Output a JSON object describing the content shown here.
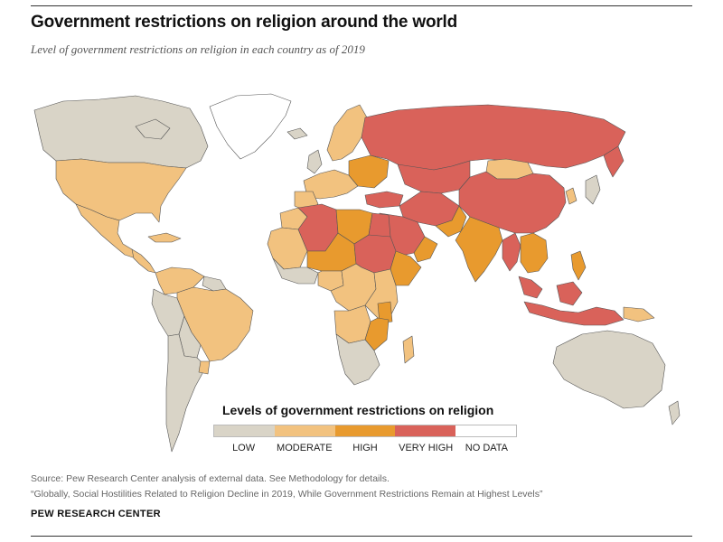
{
  "title": "Government restrictions on religion around the world",
  "subtitle": "Level of government restrictions on religion in each country as of 2019",
  "legend": {
    "title": "Levels of government restrictions on religion",
    "levels": [
      {
        "key": "low",
        "label": "LOW",
        "color": "#d9d4c7"
      },
      {
        "key": "moderate",
        "label": "MODERATE",
        "color": "#f2c27f"
      },
      {
        "key": "high",
        "label": "HIGH",
        "color": "#e89a2e"
      },
      {
        "key": "very_high",
        "label": "VERY HIGH",
        "color": "#d9625a"
      },
      {
        "key": "no_data",
        "label": "NO DATA",
        "color": "#ffffff"
      }
    ]
  },
  "source_lines": [
    "Source: Pew Research Center analysis of external data. See Methodology for details.",
    "“Globally, Social Hostilities Related to Religion Decline in 2019, While Government Restrictions Remain at Highest Levels”"
  ],
  "organization": "PEW RESEARCH CENTER",
  "colors": {
    "border": "#555555",
    "rule": "#333333"
  }
}
